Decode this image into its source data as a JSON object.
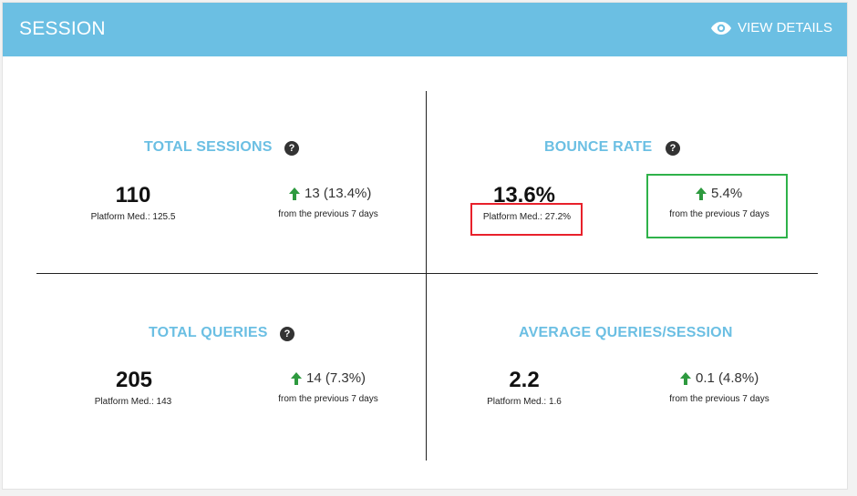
{
  "header": {
    "title": "SESSION",
    "view_details": "VIEW DETAILS"
  },
  "colors": {
    "header_bg": "#6bbfe3",
    "title_blue": "#6bbfe3",
    "arrow_green": "#2e9a3f",
    "highlight_red": "#e8212b",
    "highlight_green": "#2fb24a"
  },
  "metrics": {
    "total_sessions": {
      "title": "TOTAL SESSIONS",
      "value": "110",
      "median": "Platform Med.: 125.5",
      "change": "13 (13.4%)",
      "period": "from the previous 7 days",
      "trend": "up"
    },
    "bounce_rate": {
      "title": "BOUNCE RATE",
      "value": "13.6%",
      "median": "Platform Med.: 27.2%",
      "change": "5.4%",
      "period": "from the previous 7 days",
      "trend": "up"
    },
    "total_queries": {
      "title": "TOTAL QUERIES",
      "value": "205",
      "median": "Platform Med.: 143",
      "change": "14 (7.3%)",
      "period": "from the previous 7 days",
      "trend": "up"
    },
    "avg_queries_session": {
      "title": "AVERAGE QUERIES/SESSION",
      "value": "2.2",
      "median": "Platform Med.: 1.6",
      "change": "0.1 (4.8%)",
      "period": "from the previous 7 days",
      "trend": "up"
    }
  },
  "icons": {
    "view": "eye-icon",
    "help": "question-icon",
    "trend": "arrow-up-icon"
  }
}
